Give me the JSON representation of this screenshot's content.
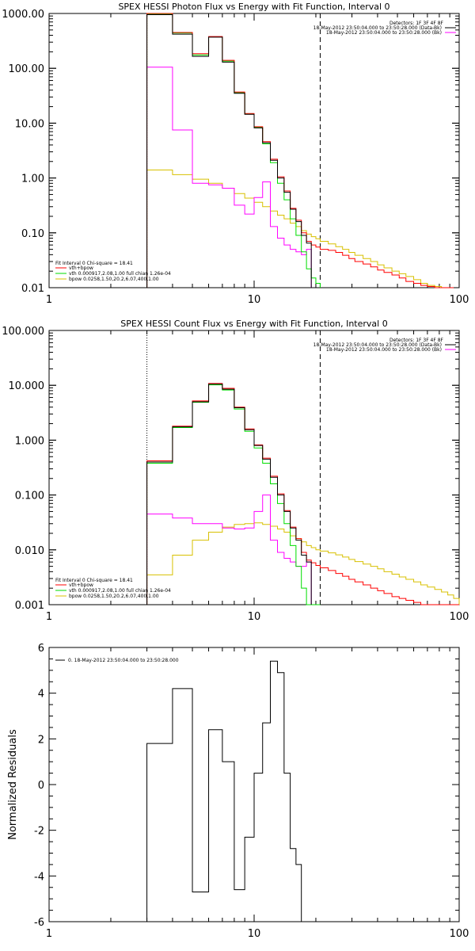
{
  "colors": {
    "data": "#000000",
    "total_fit": "#ff0000",
    "vth": "#00dd00",
    "bpow": "#d8c000",
    "background": "#ff00ff"
  },
  "chart_data": [
    {
      "type": "line",
      "title": "SPEX HESSI Photon Flux vs Energy with Fit Function, Interval 0",
      "xscale": "log",
      "yscale": "log",
      "xlim": [
        1,
        100
      ],
      "ylim": [
        0.01,
        1000
      ],
      "xticks": [
        {
          "v": 1,
          "label": "1"
        },
        {
          "v": 10,
          "label": "10"
        },
        {
          "v": 100,
          "label": "100"
        }
      ],
      "yticks": [
        {
          "v": 0.01,
          "label": "0.01"
        },
        {
          "v": 0.1,
          "label": "0.10"
        },
        {
          "v": 1,
          "label": "1.00"
        },
        {
          "v": 10,
          "label": "10.00"
        },
        {
          "v": 100,
          "label": "100.00"
        },
        {
          "v": 1000,
          "label": "1000.00"
        }
      ],
      "vlines": [
        {
          "x": 3,
          "style": "dotted"
        },
        {
          "x": 21,
          "style": "dashed"
        }
      ],
      "edges": [
        3,
        4,
        5,
        6,
        7,
        8,
        9,
        10,
        11,
        12,
        13,
        14,
        15,
        16,
        17,
        18,
        19,
        20,
        21,
        23,
        25,
        27,
        29,
        31,
        34,
        37,
        40,
        43,
        47,
        51,
        55,
        60,
        65,
        70,
        76,
        82,
        88,
        94
      ],
      "series": [
        {
          "key": "data",
          "values": [
            950,
            420,
            165,
            370,
            130,
            35,
            14.5,
            8.2,
            4.4,
            2.1,
            1.0,
            0.55,
            0.27,
            0.16,
            0.09,
            0.065
          ]
        },
        {
          "key": "total_fit",
          "values": [
            1000,
            450,
            185,
            380,
            140,
            37,
            15,
            8.6,
            4.6,
            2.2,
            1.05,
            0.58,
            0.28,
            0.17,
            0.1,
            0.07,
            0.06,
            0.055,
            0.05,
            0.048,
            0.044,
            0.039,
            0.034,
            0.03,
            0.027,
            0.024,
            0.021,
            0.019,
            0.017,
            0.015,
            0.013,
            0.012,
            0.011,
            0.0105,
            0.01,
            0.01,
            0.01
          ]
        },
        {
          "key": "vth",
          "values": [
            980,
            440,
            175,
            375,
            135,
            36,
            14.7,
            8.4,
            4.2,
            1.9,
            0.8,
            0.4,
            0.18,
            0.09,
            0.045,
            0.022,
            0.015,
            0.012
          ]
        },
        {
          "key": "bpow",
          "values": [
            1.4,
            1.15,
            0.95,
            0.8,
            0.65,
            0.52,
            0.43,
            0.36,
            0.3,
            0.25,
            0.21,
            0.18,
            0.15,
            0.13,
            0.11,
            0.095,
            0.085,
            0.078,
            0.07,
            0.063,
            0.056,
            0.05,
            0.044,
            0.039,
            0.034,
            0.03,
            0.026,
            0.023,
            0.02,
            0.018,
            0.016,
            0.014,
            0.012,
            0.011,
            0.0105,
            0.01,
            0.01
          ]
        },
        {
          "key": "background",
          "values": [
            105,
            7.5,
            0.8,
            0.75,
            0.65,
            0.32,
            0.22,
            0.44,
            0.85,
            0.13,
            0.08,
            0.06,
            0.05,
            0.045,
            0.04,
            0.05
          ]
        }
      ],
      "legend_top": {
        "line1": "Detectors: 1F 3F 4F 8F",
        "items": [
          {
            "label": "18-May-2012 23:50:04.000 to 23:50:28.000 (Data-Bk)",
            "key": "data"
          },
          {
            "label": "18-May-2012 23:50:04.000 to 23:50:28.000 (Bk)",
            "key": "background"
          }
        ]
      },
      "legend_bottom": {
        "header": "Fit Interval 0   Chi-square = 18.41",
        "items": [
          {
            "label": "vth+bpow",
            "key": "total_fit"
          },
          {
            "label": "vth 0.000917,2.08,1.00  full chian 1.26e-04",
            "key": "vth"
          },
          {
            "label": "bpow 0.0258,1.50,20.2,6.07,400,1.00",
            "key": "bpow"
          }
        ]
      }
    },
    {
      "type": "line",
      "title": "SPEX HESSI Count Flux vs Energy with Fit Function, Interval 0",
      "xscale": "log",
      "yscale": "log",
      "xlim": [
        1,
        100
      ],
      "ylim": [
        0.001,
        100
      ],
      "xticks": [
        {
          "v": 1,
          "label": "1"
        },
        {
          "v": 10,
          "label": "10"
        },
        {
          "v": 100,
          "label": "100"
        }
      ],
      "yticks": [
        {
          "v": 0.001,
          "label": "0.001"
        },
        {
          "v": 0.01,
          "label": "0.010"
        },
        {
          "v": 0.1,
          "label": "0.100"
        },
        {
          "v": 1,
          "label": "1.000"
        },
        {
          "v": 10,
          "label": "10.000"
        },
        {
          "v": 100,
          "label": "100.000"
        }
      ],
      "vlines": [
        {
          "x": 3,
          "style": "dotted"
        },
        {
          "x": 21,
          "style": "dashed"
        }
      ],
      "edges": [
        3,
        4,
        5,
        6,
        7,
        8,
        9,
        10,
        11,
        12,
        13,
        14,
        15,
        16,
        17,
        18,
        19,
        20,
        21,
        23,
        25,
        27,
        29,
        31,
        34,
        37,
        40,
        43,
        47,
        51,
        55,
        60,
        65,
        70,
        76,
        82,
        88,
        94,
        100
      ],
      "series": [
        {
          "key": "data",
          "values": [
            0.4,
            1.75,
            5.0,
            10.5,
            8.5,
            3.9,
            1.55,
            0.8,
            0.45,
            0.21,
            0.1,
            0.05,
            0.025,
            0.015,
            0.008,
            0.006
          ]
        },
        {
          "key": "total_fit",
          "values": [
            0.42,
            1.8,
            5.2,
            10.8,
            8.8,
            4.0,
            1.6,
            0.82,
            0.47,
            0.22,
            0.105,
            0.052,
            0.026,
            0.016,
            0.009,
            0.0065,
            0.0058,
            0.0052,
            0.0047,
            0.0042,
            0.0037,
            0.0033,
            0.0029,
            0.0026,
            0.0023,
            0.002,
            0.0018,
            0.0016,
            0.0014,
            0.0013,
            0.0012,
            0.0011,
            0.001,
            0.001,
            0.001,
            0.001,
            0.001,
            0.001
          ]
        },
        {
          "key": "vth",
          "values": [
            0.38,
            1.7,
            4.9,
            10.2,
            8.2,
            3.7,
            1.45,
            0.72,
            0.38,
            0.16,
            0.07,
            0.03,
            0.012,
            0.005,
            0.002,
            0.001,
            0.001,
            0.001
          ]
        },
        {
          "key": "bpow",
          "values": [
            0.0035,
            0.008,
            0.015,
            0.021,
            0.026,
            0.029,
            0.03,
            0.031,
            0.029,
            0.027,
            0.024,
            0.021,
            0.018,
            0.016,
            0.014,
            0.012,
            0.011,
            0.01,
            0.0095,
            0.0088,
            0.0081,
            0.0074,
            0.0067,
            0.0061,
            0.0055,
            0.005,
            0.0045,
            0.004,
            0.0036,
            0.0032,
            0.0029,
            0.0026,
            0.0023,
            0.0021,
            0.0019,
            0.0017,
            0.0015,
            0.0013
          ]
        },
        {
          "key": "background",
          "values": [
            0.045,
            0.038,
            0.03,
            0.03,
            0.025,
            0.024,
            0.025,
            0.05,
            0.1,
            0.015,
            0.009,
            0.007,
            0.006,
            0.005,
            0.005,
            0.006
          ]
        }
      ],
      "legend_top": {
        "line1": "Detectors: 1F 3F 4F 8F",
        "items": [
          {
            "label": "18-May-2012 23:50:04.000 to 23:50:28.000 (Data-Bk)",
            "key": "data"
          },
          {
            "label": "18-May-2012 23:50:04.000 to 23:50:28.000 (Bk)",
            "key": "background"
          }
        ]
      },
      "legend_bottom": {
        "header": "Fit Interval 0   Chi-square = 18.41",
        "items": [
          {
            "label": "vth+bpow",
            "key": "total_fit"
          },
          {
            "label": "vth 0.000917,2.08,1.00  full chian 1.26e-04",
            "key": "vth"
          },
          {
            "label": "bpow 0.0258,1.50,20.2,6.07,400,1.00",
            "key": "bpow"
          }
        ]
      }
    },
    {
      "type": "line",
      "title": "",
      "ylabel": "Normalized Residuals",
      "xscale": "log",
      "yscale": "linear",
      "xlim": [
        1,
        100
      ],
      "ylim": [
        -6,
        6
      ],
      "xticks": [
        {
          "v": 1,
          "label": "1"
        },
        {
          "v": 10,
          "label": "10"
        },
        {
          "v": 100,
          "label": "100"
        }
      ],
      "yticks": [
        {
          "v": -6,
          "label": "-6"
        },
        {
          "v": -4,
          "label": "-4"
        },
        {
          "v": -2,
          "label": "-2"
        },
        {
          "v": 0,
          "label": "0"
        },
        {
          "v": 2,
          "label": "2"
        },
        {
          "v": 4,
          "label": "4"
        },
        {
          "v": 6,
          "label": "6"
        }
      ],
      "edges": [
        3,
        4,
        5,
        6,
        7,
        8,
        9,
        10,
        11,
        12,
        13,
        14,
        15,
        16,
        17,
        18,
        19,
        20
      ],
      "series": [
        {
          "key": "data",
          "values": [
            1.8,
            4.2,
            -4.7,
            2.4,
            1.0,
            -4.6,
            -2.3,
            0.5,
            2.7,
            5.4,
            4.9,
            0.5,
            -2.8,
            -3.5
          ],
          "floor": -6
        }
      ],
      "legend_top": {
        "items": [
          {
            "label": "0. 18-May-2012 23:50:04.000 to 23:50:28.000",
            "key": "data"
          }
        ]
      }
    }
  ]
}
